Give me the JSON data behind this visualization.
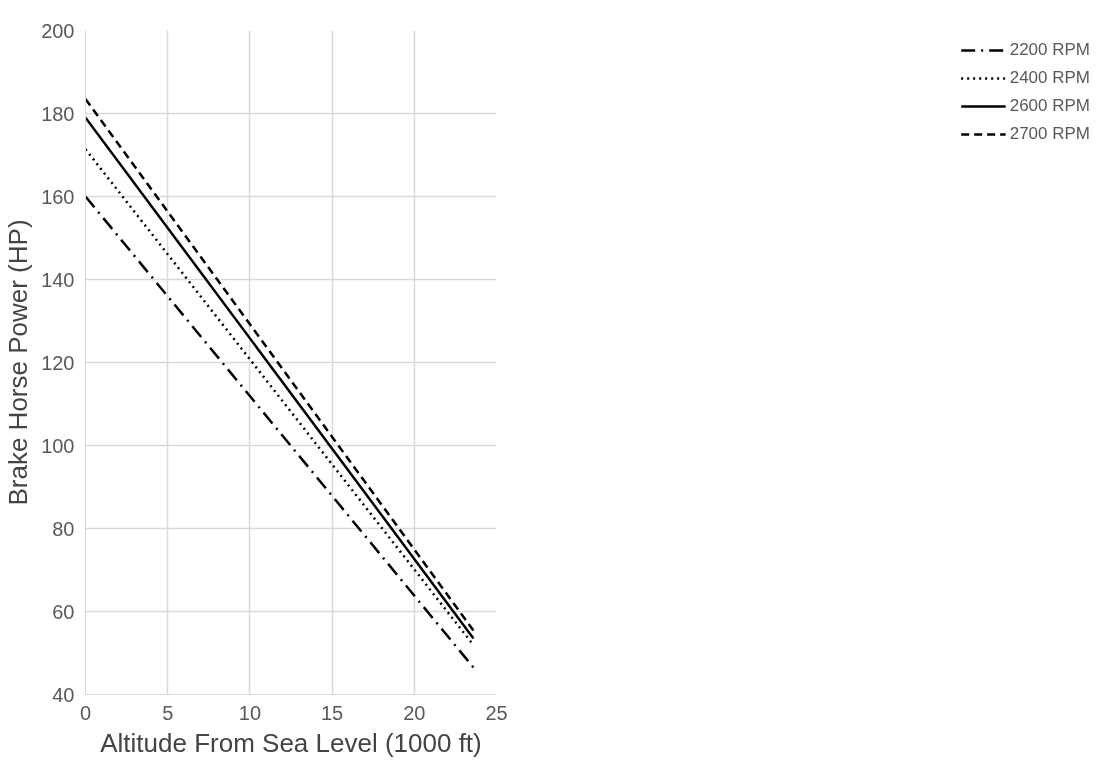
{
  "chart_data": {
    "type": "line",
    "xlabel": "Altitude From Sea Level (1000 ft)",
    "ylabel": "Brake Horse Power (HP)",
    "x": [
      0,
      23.6
    ],
    "series": [
      {
        "name": "2200 RPM",
        "color": "#000000",
        "values": [
          160,
          46.5
        ],
        "line_style": "dashdot"
      },
      {
        "name": "2400 RPM",
        "color": "#000000",
        "values": [
          171.4,
          51.9
        ],
        "line_style": "dotted"
      },
      {
        "name": "2600 RPM",
        "color": "#000000",
        "values": [
          179,
          53.5
        ],
        "line_style": "solid"
      },
      {
        "name": "2700 RPM",
        "color": "#000000",
        "values": [
          183.5,
          55.4
        ],
        "line_style": "dashed"
      }
    ],
    "xlim": [
      0,
      25
    ],
    "xticks": [
      0,
      5,
      10,
      15,
      20,
      25
    ],
    "ylim": [
      40,
      200
    ],
    "yticks": [
      40,
      60,
      80,
      100,
      120,
      140,
      160,
      180,
      200
    ],
    "grid": true,
    "legend": "right"
  }
}
